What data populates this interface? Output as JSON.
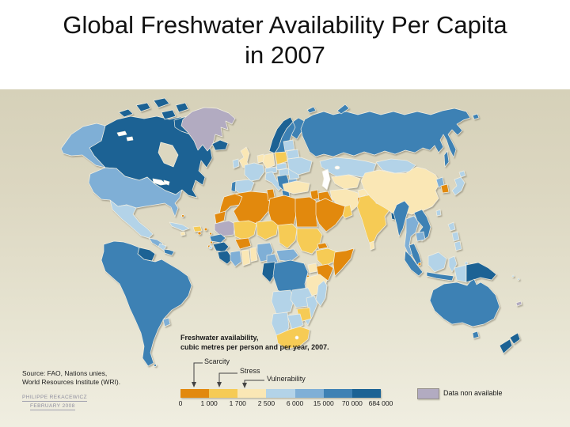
{
  "slide": {
    "title_line1": "Global Freshwater Availability Per Capita",
    "title_line2": "in 2007"
  },
  "legend": {
    "title_line1": "Freshwater availability,",
    "title_line2": "cubic metres per person and per year, 2007.",
    "markers": [
      "Scarcity",
      "Stress",
      "Vulnerability"
    ],
    "ticks": [
      "0",
      "1 000",
      "1 700",
      "2 500",
      "6 000",
      "15 000",
      "70 000",
      "684 000"
    ],
    "class_colors": [
      "#e2890e",
      "#f6cb55",
      "#fae7b5",
      "#b3d3e8",
      "#7fafd6",
      "#3e81b4",
      "#1b6294"
    ],
    "no_data_label": "Data non available",
    "no_data_color": "#b2abc1"
  },
  "source": {
    "line1": "Source: FAO, Nations unies,",
    "line2": "World Resources Institute (WRI).",
    "credit_line1": "PHILIPPE REKACEWICZ",
    "credit_line2": "FEBRUARY 2008"
  },
  "map": {
    "palette": {
      "c1": "#e2890e",
      "c2": "#f6cb55",
      "c3": "#fae7b5",
      "c4": "#b3d3e8",
      "c5": "#7fafd6",
      "c6": "#3e81b4",
      "c7": "#1b6294",
      "nd": "#b2abc1",
      "lake": "#ffffff",
      "bay": "#dcd7c0"
    },
    "regions": {
      "alaska": "c5",
      "canada": "c7",
      "archipelago": "c7",
      "hudsonbay": "bay",
      "greatlakes": "lake",
      "lakewinnipeg": "lake",
      "greenland": "nd",
      "iceland": "c7",
      "usa": "c5",
      "mexico": "c4",
      "guatemala": "c5",
      "nicaragua": "c4",
      "panama": "c6",
      "cuba": "c4",
      "hispaniola": "c2",
      "jamaica": "c3",
      "bahamas": "c1",
      "puertorico": "c1",
      "antilles": "c1",
      "capeverde": "c1",
      "trinidad": "c4",
      "southamerica": "c6",
      "guyanas": "c7",
      "uruguay": "c5",
      "falkland": "c6",
      "norway": "c7",
      "sweden": "c6",
      "finland": "c6",
      "denmark": "c3",
      "uk": "c3",
      "ireland": "c4",
      "netherlands": "c3",
      "germany": "c3",
      "poland": "c2",
      "france": "c4",
      "spain": "c4",
      "portugal": "c6",
      "italy": "c4",
      "alpine": "c4",
      "czech": "c4",
      "hungary": "c4",
      "balkans": "c6",
      "greece": "c6",
      "romania": "c4",
      "bulgaria": "c5",
      "ukraine": "c4",
      "belarus": "c4",
      "baltics": "c4",
      "russia": "c6",
      "novayazemlya": "c6",
      "arcticisles": "c6",
      "sakhalin": "c6",
      "kazakhstan": "c4",
      "caspian": "lake",
      "aral": "lake",
      "centralasia": "c3",
      "turkey": "c3",
      "levant": "c1",
      "iraq": "c1",
      "iran": "c3",
      "afghanistan": "c3",
      "saudi": "c1",
      "oman": "c2",
      "pakistan": "c1",
      "india": "c2",
      "nepal": "c1",
      "bangladesh": "c7",
      "srilanka": "c3",
      "mongolia": "c4",
      "china": "c3",
      "nkorea": "c5",
      "skorea": "c1",
      "japan": "c4",
      "taiwan": "c4",
      "myanmar": "c6",
      "thailand": "c5",
      "laosvietnam": "c6",
      "cambodia": "c5",
      "malaysia": "c6",
      "singapore": "c1",
      "sumatra": "c6",
      "borneo": "c4",
      "java": "c6",
      "sulawesi": "c4",
      "philippines": "c4",
      "maluku": "c4",
      "wpapua": "c4",
      "png": "c7",
      "australia": "c6",
      "tasmania": "c6",
      "newzealand": "c7",
      "newcaledonia": "nd",
      "pacific": "c4",
      "morocco": "c1",
      "westsahara": "c1",
      "algeria": "c1",
      "tunisia": "c1",
      "libya": "c1",
      "egypt": "c1",
      "mauritania": "nd",
      "mali": "c2",
      "niger": "c2",
      "chad": "c2",
      "sudan": "c2",
      "eritrea": "c1",
      "ethiopia": "c2",
      "somalia": "c1",
      "kenya": "c1",
      "uganda": "c3",
      "rwanda": "c1",
      "senegal": "c6",
      "guinea": "c7",
      "liberia": "c7",
      "ivorycoast": "c5",
      "ghana": "c3",
      "togo": "c3",
      "burkina": "c1",
      "nigeria": "c5",
      "cameroon": "c5",
      "car": "c5",
      "gabon": "c7",
      "drc": "c6",
      "tanzania": "c3",
      "angola": "c4",
      "zambia": "c4",
      "malawi": "c7",
      "mozambique": "c4",
      "zimbabwe": "c2",
      "botswana": "c4",
      "namibia": "c4",
      "southafrica": "c2",
      "lesotho": "lake",
      "madagascar": "c4"
    }
  }
}
